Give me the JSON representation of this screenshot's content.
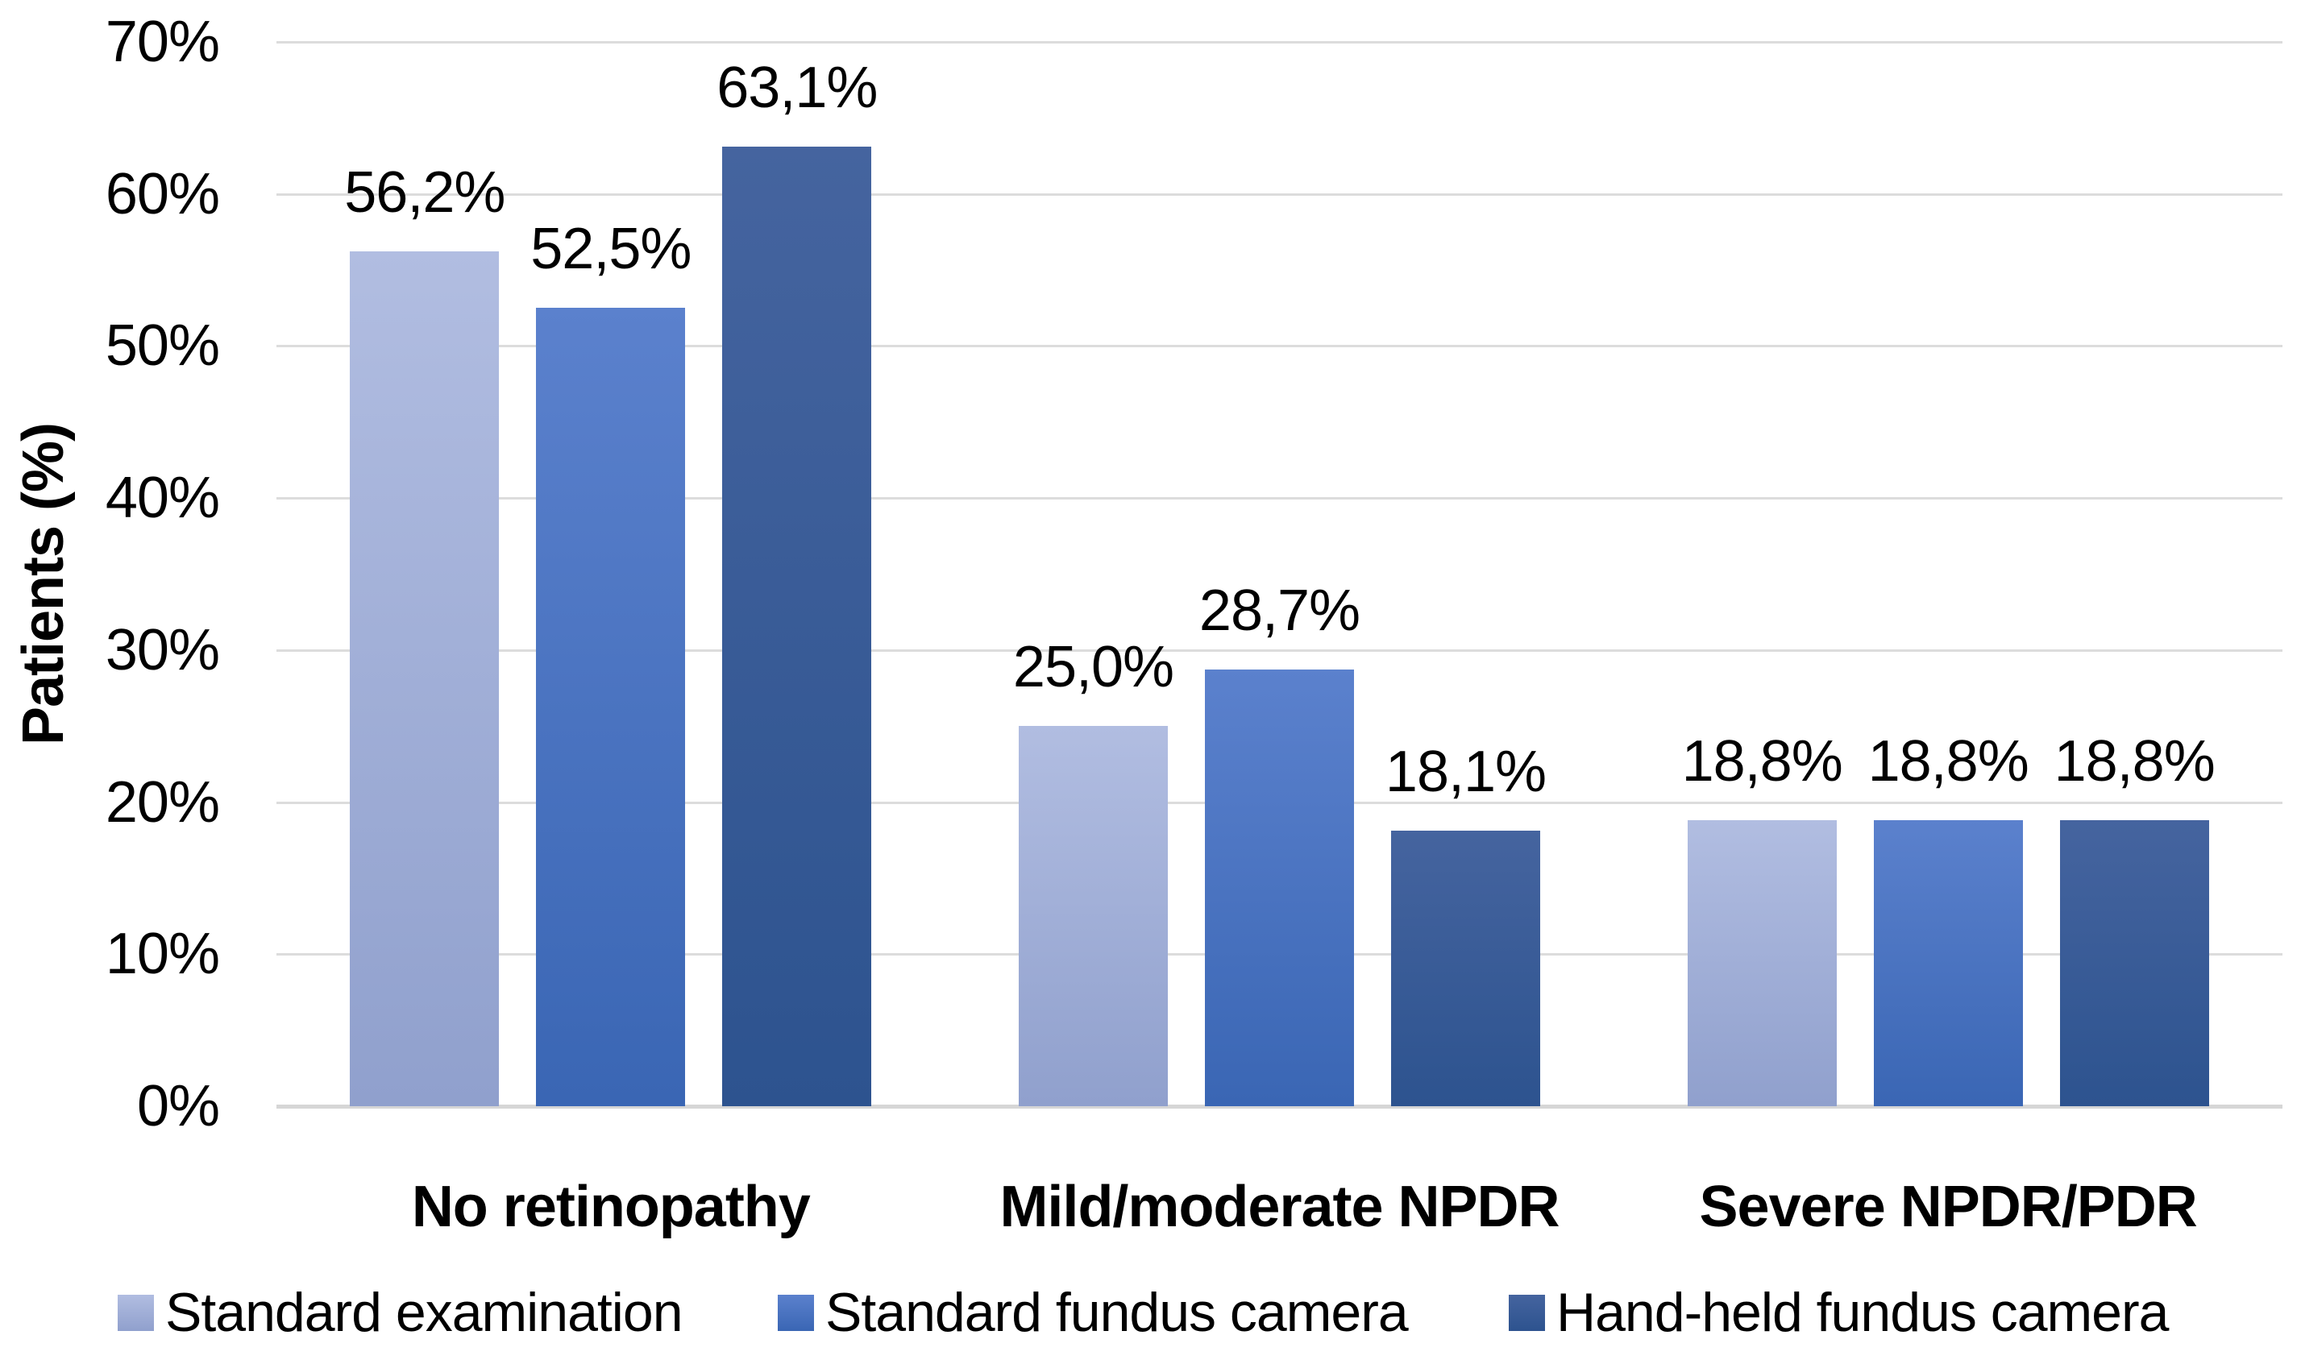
{
  "chart_data": {
    "type": "bar",
    "title": "",
    "xlabel": "",
    "ylabel": "Patients (%)",
    "categories": [
      "No retinopathy",
      "Mild/moderate NPDR",
      "Severe NPDR/PDR"
    ],
    "series": [
      {
        "name": "Standard examination",
        "values": [
          56.2,
          25.0,
          18.8
        ],
        "value_labels": [
          "56,2%",
          "25,0%",
          "18,8%"
        ],
        "color_top": "#B1BDE1",
        "color_bottom": "#90A0CD",
        "legend_color": "#9FAED9"
      },
      {
        "name": "Standard fundus camera",
        "values": [
          52.5,
          28.7,
          18.8
        ],
        "value_labels": [
          "52,5%",
          "28,7%",
          "18,8%"
        ],
        "color_top": "#5B81CD",
        "color_bottom": "#3A66B4",
        "legend_color": "#4472C4"
      },
      {
        "name": "Hand-held fundus camera",
        "values": [
          63.1,
          18.1,
          18.8
        ],
        "value_labels": [
          "63,1%",
          "18,1%",
          "18,8%"
        ],
        "color_top": "#45649F",
        "color_bottom": "#2D538F",
        "legend_color": "#2F5597"
      }
    ],
    "y_ticks": [
      "0%",
      "10%",
      "20%",
      "30%",
      "40%",
      "50%",
      "60%",
      "70%"
    ],
    "ylim": [
      0,
      70
    ],
    "grid": true,
    "gridline_color": "#dcdcdc",
    "text_color": "#000000",
    "background_color": "#ffffff",
    "legend_position": "bottom"
  }
}
